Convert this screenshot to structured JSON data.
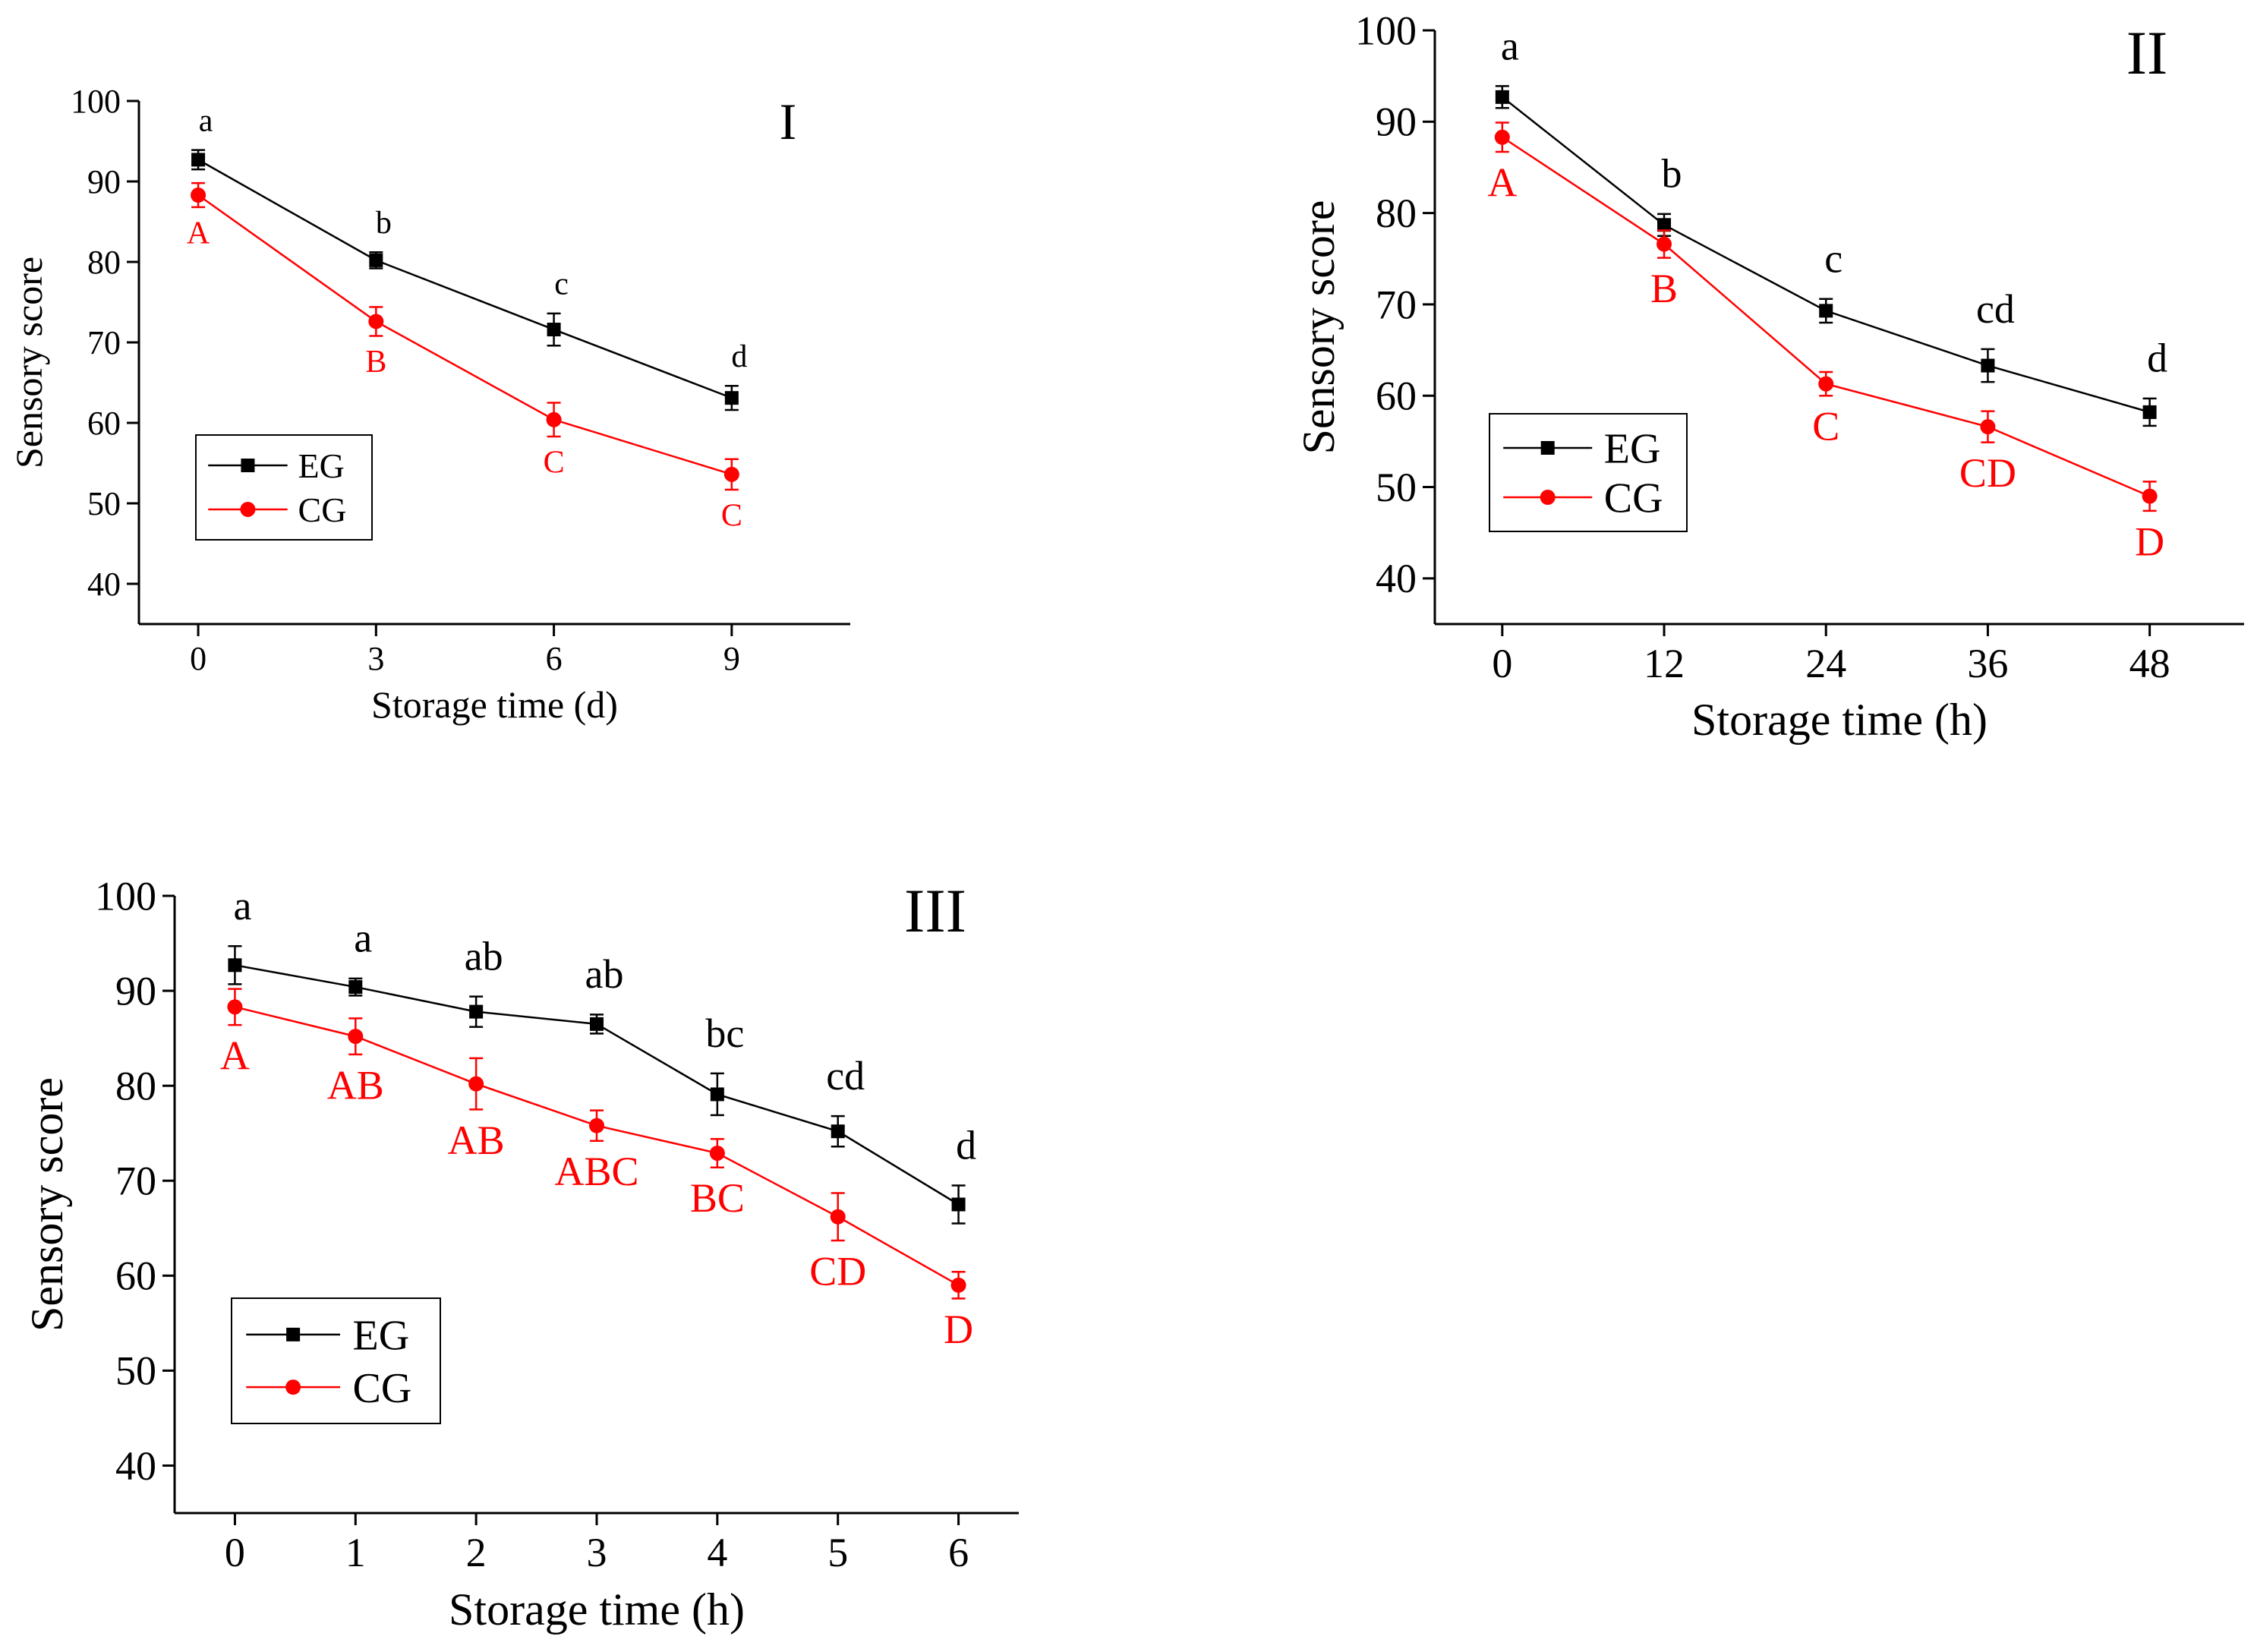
{
  "colors": {
    "EG": "#000000",
    "CG": "#ff0000",
    "axis": "#000000"
  },
  "chart_data": [
    {
      "panel_label": "I",
      "type": "line",
      "xlabel": "Storage time (d)",
      "ylabel": "Sensory score",
      "x": [
        0,
        3,
        6,
        9
      ],
      "xticks": [
        "0",
        "3",
        "6",
        "9"
      ],
      "xlim": [
        -1,
        11
      ],
      "ylim": [
        35,
        100
      ],
      "yticks": [
        40,
        50,
        60,
        70,
        80,
        90,
        100
      ],
      "legend": {
        "position": "bottom-left",
        "entries": [
          "EG",
          "CG"
        ]
      },
      "series": [
        {
          "name": "EG",
          "color": "#000000",
          "marker": "square",
          "values": [
            92.7,
            80.2,
            71.6,
            63.1
          ],
          "errors": [
            1.2,
            1.0,
            2.0,
            1.5
          ],
          "letters": [
            "a",
            "b",
            "c",
            "d"
          ]
        },
        {
          "name": "CG",
          "color": "#ff0000",
          "marker": "circle",
          "values": [
            88.3,
            72.6,
            60.4,
            53.6
          ],
          "errors": [
            1.5,
            1.8,
            2.1,
            1.9
          ],
          "letters": [
            "A",
            "B",
            "C",
            "C"
          ]
        }
      ]
    },
    {
      "panel_label": "II",
      "type": "line",
      "xlabel": "Storage time (h)",
      "ylabel": "Sensory score",
      "x": [
        0,
        12,
        24,
        36,
        48
      ],
      "xticks": [
        "0",
        "12",
        "24",
        "36",
        "48"
      ],
      "xlim": [
        -5,
        55
      ],
      "ylim": [
        35,
        100
      ],
      "yticks": [
        40,
        50,
        60,
        70,
        80,
        90,
        100
      ],
      "legend": {
        "position": "bottom-left",
        "entries": [
          "EG",
          "CG"
        ]
      },
      "series": [
        {
          "name": "EG",
          "color": "#000000",
          "marker": "square",
          "values": [
            92.7,
            78.7,
            69.3,
            63.3,
            58.2
          ],
          "errors": [
            1.2,
            1.2,
            1.3,
            1.8,
            1.5
          ],
          "letters": [
            "a",
            "b",
            "c",
            "cd",
            "d"
          ]
        },
        {
          "name": "CG",
          "color": "#ff0000",
          "marker": "circle",
          "values": [
            88.3,
            76.6,
            61.3,
            56.6,
            49.0
          ],
          "errors": [
            1.6,
            1.5,
            1.3,
            1.7,
            1.6
          ],
          "letters": [
            "A",
            "B",
            "C",
            "CD",
            "D"
          ]
        }
      ]
    },
    {
      "panel_label": "III",
      "type": "line",
      "xlabel": "Storage time (h)",
      "ylabel": "Sensory score",
      "x": [
        0,
        1,
        2,
        3,
        4,
        5,
        6
      ],
      "xticks": [
        "0",
        "1",
        "2",
        "3",
        "4",
        "5",
        "6"
      ],
      "xlim": [
        -0.5,
        6.5
      ],
      "ylim": [
        35,
        100
      ],
      "yticks": [
        40,
        50,
        60,
        70,
        80,
        90,
        100
      ],
      "legend": {
        "position": "bottom-left",
        "entries": [
          "EG",
          "CG"
        ]
      },
      "series": [
        {
          "name": "EG",
          "color": "#000000",
          "marker": "square",
          "values": [
            92.7,
            90.4,
            87.8,
            86.5,
            79.1,
            75.2,
            67.5
          ],
          "errors": [
            2.0,
            0.9,
            1.6,
            1.0,
            2.2,
            1.6,
            2.0
          ],
          "letters": [
            "a",
            "a",
            "ab",
            "ab",
            "bc",
            "cd",
            "d"
          ]
        },
        {
          "name": "CG",
          "color": "#ff0000",
          "marker": "circle",
          "values": [
            88.3,
            85.2,
            80.2,
            75.8,
            72.9,
            66.2,
            59.0
          ],
          "errors": [
            1.9,
            1.9,
            2.7,
            1.6,
            1.5,
            2.5,
            1.4
          ],
          "letters": [
            "A",
            "AB",
            "AB",
            "ABC",
            "BC",
            "CD",
            "D"
          ]
        }
      ]
    }
  ]
}
